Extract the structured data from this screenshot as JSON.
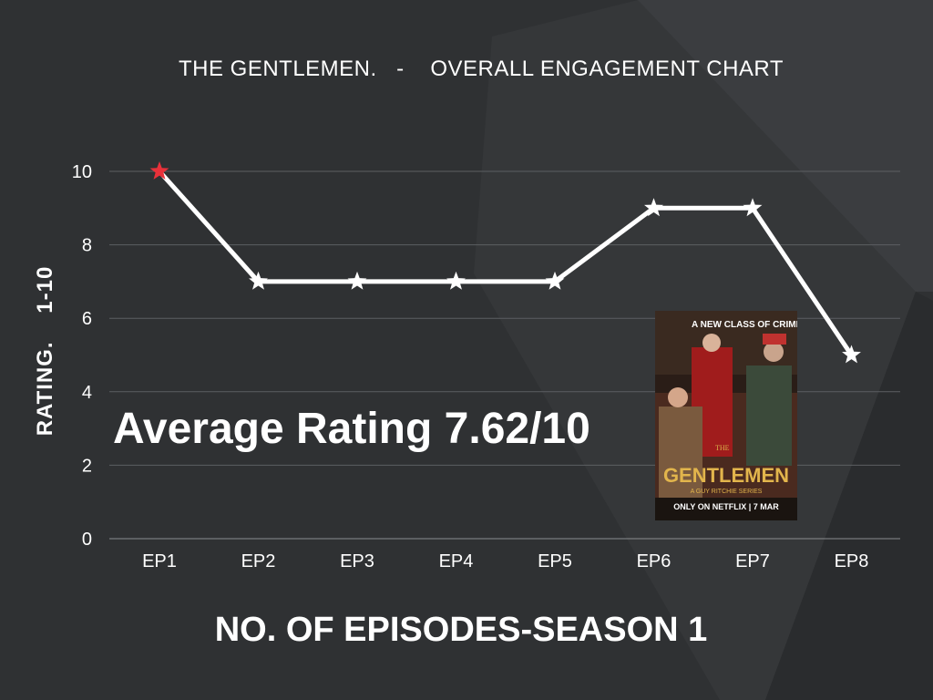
{
  "title": "THE GENTLEMEN.   -    OVERALL ENGAGEMENT CHART",
  "average_label": "Average Rating 7.62/10",
  "poster": {
    "tagline": "A NEW CLASS OF CRIMINAL",
    "article": "THE",
    "brand": "GENTLEMEN",
    "subtitle": "A GUY RITCHIE SERIES",
    "release": "ONLY ON NETFLIX | 7 MAR"
  },
  "colors": {
    "background": "#2f3133",
    "line": "#ffffff",
    "highlight_marker": "#e8313a",
    "grid": "#5c5f62"
  },
  "chart_data": {
    "type": "line",
    "title": "THE GENTLEMEN.   -    OVERALL ENGAGEMENT CHART",
    "xlabel": "NO. OF EPISODES-SEASON 1",
    "ylabel": "RATING.    1-10",
    "categories": [
      "EP1",
      "EP2",
      "EP3",
      "EP4",
      "EP5",
      "EP6",
      "EP7",
      "EP8"
    ],
    "values": [
      10,
      7,
      7,
      7,
      7,
      9,
      9,
      5
    ],
    "yticks": [
      0,
      2,
      4,
      6,
      8,
      10
    ],
    "ylim": [
      0,
      10
    ],
    "grid": true,
    "marker": "star",
    "highlight": "EP1"
  }
}
